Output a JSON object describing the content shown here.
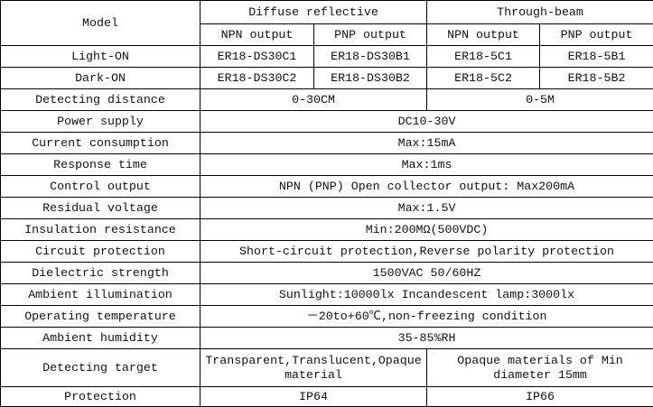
{
  "header": {
    "model": "Model",
    "diffuse": "Diffuse reflective",
    "through": "Through-beam",
    "npn": "NPN output",
    "pnp": "PNP output"
  },
  "models": [
    {
      "label": "Light-ON",
      "values": [
        "ER18-DS30C1",
        "ER18-DS30B1",
        "ER18-5C1",
        "ER18-5B1"
      ]
    },
    {
      "label": "Dark-ON",
      "values": [
        "ER18-DS30C2",
        "ER18-DS30B2",
        "ER18-5C2",
        "ER18-5B2"
      ]
    }
  ],
  "distance": {
    "label": "Detecting distance",
    "diffuse": "0-30CM",
    "through": "0-5M"
  },
  "specs": [
    {
      "label": "Power supply",
      "value": "DC10-30V"
    },
    {
      "label": "Current consumption",
      "value": "Max:15mA"
    },
    {
      "label": "Response time",
      "value": "Max:1ms"
    },
    {
      "label": "Control output",
      "value": "NPN (PNP) Open collector output: Max200mA"
    },
    {
      "label": "Residual voltage",
      "value": "Max:1.5V"
    },
    {
      "label": "Insulation resistance",
      "value": "Min:200MΩ(500VDC)"
    },
    {
      "label": "Circuit protection",
      "value": "Short-circuit protection,Reverse polarity protection"
    },
    {
      "label": "Dielectric strength",
      "value": "1500VAC 50/60HZ"
    },
    {
      "label": "Ambient illumination",
      "value": "Sunlight:10000lx Incandescent lamp:3000lx"
    },
    {
      "label": "Operating temperature",
      "value": "－20to+60℃,non-freezing condition"
    },
    {
      "label": "Ambient humidity",
      "value": "35-85%RH"
    }
  ],
  "target": {
    "label": "Detecting target",
    "diffuse": "Transparent,Translucent,Opaque material",
    "through": "Opaque materials of Min diameter 15mm"
  },
  "protection": {
    "label": "Protection",
    "diffuse": "IP64",
    "through": "IP66"
  }
}
